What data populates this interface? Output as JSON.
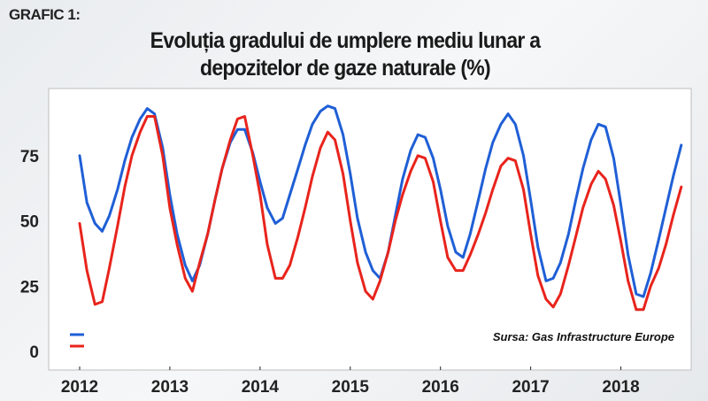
{
  "figure_label": "GRAFIC 1:",
  "title_line1": "Evoluția gradului de umplere mediu lunar a",
  "title_line2": "depozitelor de gaze naturale (%)",
  "source": "Sursa: Gas Infrastructure Europe",
  "colors": {
    "series_blue": "#1f5fd6",
    "series_red": "#e8241c",
    "axis": "#222222",
    "grid": "#c8c8c8"
  },
  "chart_data": {
    "type": "line",
    "xlabel": "",
    "ylabel": "",
    "xlim": [
      2012.0,
      2018.75
    ],
    "ylim": [
      0,
      100
    ],
    "x_ticks": [
      2012,
      2013,
      2014,
      2015,
      2016,
      2017,
      2018
    ],
    "y_ticks": [
      0,
      25,
      50,
      75
    ],
    "grid": false,
    "legend": "bottom-left",
    "series": [
      {
        "name": "",
        "color": "#1f5fd6",
        "points": [
          [
            2012.0,
            75
          ],
          [
            2012.08,
            57
          ],
          [
            2012.17,
            49
          ],
          [
            2012.25,
            46
          ],
          [
            2012.33,
            52
          ],
          [
            2012.42,
            62
          ],
          [
            2012.5,
            73
          ],
          [
            2012.58,
            82
          ],
          [
            2012.67,
            89
          ],
          [
            2012.75,
            93
          ],
          [
            2012.83,
            91
          ],
          [
            2012.92,
            78
          ],
          [
            2013.0,
            60
          ],
          [
            2013.08,
            45
          ],
          [
            2013.17,
            33
          ],
          [
            2013.25,
            27
          ],
          [
            2013.33,
            33
          ],
          [
            2013.42,
            45
          ],
          [
            2013.5,
            58
          ],
          [
            2013.58,
            70
          ],
          [
            2013.67,
            80
          ],
          [
            2013.75,
            85
          ],
          [
            2013.83,
            85
          ],
          [
            2013.92,
            76
          ],
          [
            2014.0,
            65
          ],
          [
            2014.08,
            55
          ],
          [
            2014.17,
            49
          ],
          [
            2014.25,
            51
          ],
          [
            2014.33,
            60
          ],
          [
            2014.42,
            70
          ],
          [
            2014.5,
            79
          ],
          [
            2014.58,
            87
          ],
          [
            2014.67,
            92
          ],
          [
            2014.75,
            94
          ],
          [
            2014.83,
            93
          ],
          [
            2014.92,
            83
          ],
          [
            2015.0,
            68
          ],
          [
            2015.08,
            51
          ],
          [
            2015.17,
            38
          ],
          [
            2015.25,
            31
          ],
          [
            2015.33,
            28
          ],
          [
            2015.42,
            38
          ],
          [
            2015.5,
            52
          ],
          [
            2015.58,
            66
          ],
          [
            2015.67,
            77
          ],
          [
            2015.75,
            83
          ],
          [
            2015.83,
            82
          ],
          [
            2015.92,
            74
          ],
          [
            2016.0,
            62
          ],
          [
            2016.08,
            48
          ],
          [
            2016.17,
            38
          ],
          [
            2016.25,
            36
          ],
          [
            2016.33,
            45
          ],
          [
            2016.42,
            58
          ],
          [
            2016.5,
            70
          ],
          [
            2016.58,
            80
          ],
          [
            2016.67,
            87
          ],
          [
            2016.75,
            91
          ],
          [
            2016.83,
            87
          ],
          [
            2016.92,
            75
          ],
          [
            2017.0,
            58
          ],
          [
            2017.08,
            40
          ],
          [
            2017.17,
            27
          ],
          [
            2017.25,
            28
          ],
          [
            2017.33,
            34
          ],
          [
            2017.42,
            45
          ],
          [
            2017.5,
            58
          ],
          [
            2017.58,
            70
          ],
          [
            2017.67,
            81
          ],
          [
            2017.75,
            87
          ],
          [
            2017.83,
            86
          ],
          [
            2017.92,
            74
          ],
          [
            2018.0,
            56
          ],
          [
            2018.08,
            37
          ],
          [
            2018.17,
            22
          ],
          [
            2018.25,
            21
          ],
          [
            2018.33,
            30
          ],
          [
            2018.42,
            43
          ],
          [
            2018.5,
            55
          ],
          [
            2018.58,
            67
          ],
          [
            2018.67,
            79
          ]
        ]
      },
      {
        "name": "",
        "color": "#e8241c",
        "points": [
          [
            2012.0,
            49
          ],
          [
            2012.08,
            31
          ],
          [
            2012.17,
            18
          ],
          [
            2012.25,
            19
          ],
          [
            2012.33,
            32
          ],
          [
            2012.42,
            48
          ],
          [
            2012.5,
            63
          ],
          [
            2012.58,
            75
          ],
          [
            2012.67,
            84
          ],
          [
            2012.75,
            90
          ],
          [
            2012.83,
            90
          ],
          [
            2012.92,
            75
          ],
          [
            2013.0,
            55
          ],
          [
            2013.08,
            41
          ],
          [
            2013.17,
            28
          ],
          [
            2013.25,
            23
          ],
          [
            2013.33,
            34
          ],
          [
            2013.42,
            45
          ],
          [
            2013.5,
            58
          ],
          [
            2013.58,
            70
          ],
          [
            2013.67,
            81
          ],
          [
            2013.75,
            89
          ],
          [
            2013.83,
            90
          ],
          [
            2013.92,
            75
          ],
          [
            2014.0,
            60
          ],
          [
            2014.08,
            41
          ],
          [
            2014.17,
            28
          ],
          [
            2014.25,
            28
          ],
          [
            2014.33,
            33
          ],
          [
            2014.42,
            44
          ],
          [
            2014.5,
            55
          ],
          [
            2014.58,
            67
          ],
          [
            2014.67,
            78
          ],
          [
            2014.75,
            84
          ],
          [
            2014.83,
            81
          ],
          [
            2014.92,
            68
          ],
          [
            2015.0,
            50
          ],
          [
            2015.08,
            34
          ],
          [
            2015.17,
            23
          ],
          [
            2015.25,
            20
          ],
          [
            2015.33,
            27
          ],
          [
            2015.42,
            38
          ],
          [
            2015.5,
            50
          ],
          [
            2015.58,
            60
          ],
          [
            2015.67,
            69
          ],
          [
            2015.75,
            75
          ],
          [
            2015.83,
            74
          ],
          [
            2015.92,
            65
          ],
          [
            2016.0,
            50
          ],
          [
            2016.08,
            36
          ],
          [
            2016.17,
            31
          ],
          [
            2016.25,
            31
          ],
          [
            2016.33,
            37
          ],
          [
            2016.42,
            45
          ],
          [
            2016.5,
            53
          ],
          [
            2016.58,
            62
          ],
          [
            2016.67,
            71
          ],
          [
            2016.75,
            74
          ],
          [
            2016.83,
            73
          ],
          [
            2016.92,
            62
          ],
          [
            2017.0,
            45
          ],
          [
            2017.08,
            29
          ],
          [
            2017.17,
            20
          ],
          [
            2017.25,
            17
          ],
          [
            2017.33,
            22
          ],
          [
            2017.42,
            33
          ],
          [
            2017.5,
            44
          ],
          [
            2017.58,
            55
          ],
          [
            2017.67,
            64
          ],
          [
            2017.75,
            69
          ],
          [
            2017.83,
            66
          ],
          [
            2017.92,
            56
          ],
          [
            2018.0,
            42
          ],
          [
            2018.08,
            27
          ],
          [
            2018.17,
            16
          ],
          [
            2018.25,
            16
          ],
          [
            2018.33,
            25
          ],
          [
            2018.42,
            32
          ],
          [
            2018.5,
            41
          ],
          [
            2018.58,
            52
          ],
          [
            2018.67,
            63
          ]
        ]
      }
    ]
  }
}
